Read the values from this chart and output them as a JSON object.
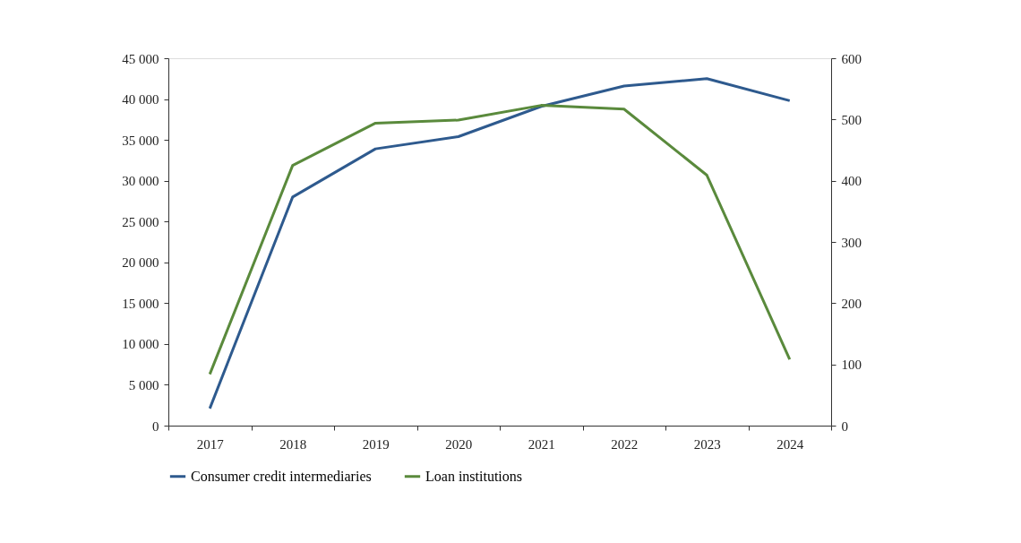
{
  "chart_data": {
    "type": "line",
    "categories": [
      "2017",
      "2018",
      "2019",
      "2020",
      "2021",
      "2022",
      "2023",
      "2024"
    ],
    "series": [
      {
        "name": "Consumer credit intermediaries",
        "color": "#2e5a8e",
        "values": [
          2100,
          28000,
          33900,
          35400,
          39100,
          41600,
          42500,
          39800
        ]
      },
      {
        "name": "Loan institutions",
        "color": "#5a8a3c",
        "axis": "y2",
        "values": [
          84,
          425,
          494,
          499,
          523,
          517,
          409,
          108
        ]
      }
    ],
    "ylim": [
      0,
      45000
    ],
    "yticks": [
      0,
      {
        "value": 5000,
        "label": "5 000"
      },
      {
        "value": 10000,
        "label": "10 000"
      },
      {
        "value": 15000,
        "label": "15 000"
      },
      {
        "value": 20000,
        "label": "20 000"
      },
      {
        "value": 25000,
        "label": "25 000"
      },
      {
        "value": 30000,
        "label": "30 000"
      },
      {
        "value": 35000,
        "label": "35 000"
      },
      {
        "value": 40000,
        "label": "40 000"
      },
      {
        "value": 45000,
        "label": "45 000"
      }
    ],
    "y2lim": [
      0,
      600
    ],
    "y2ticks": [
      0,
      100,
      200,
      300,
      400,
      500,
      600
    ],
    "grid": false,
    "legend": "bottom",
    "marker": "none",
    "line_style": "solid"
  }
}
